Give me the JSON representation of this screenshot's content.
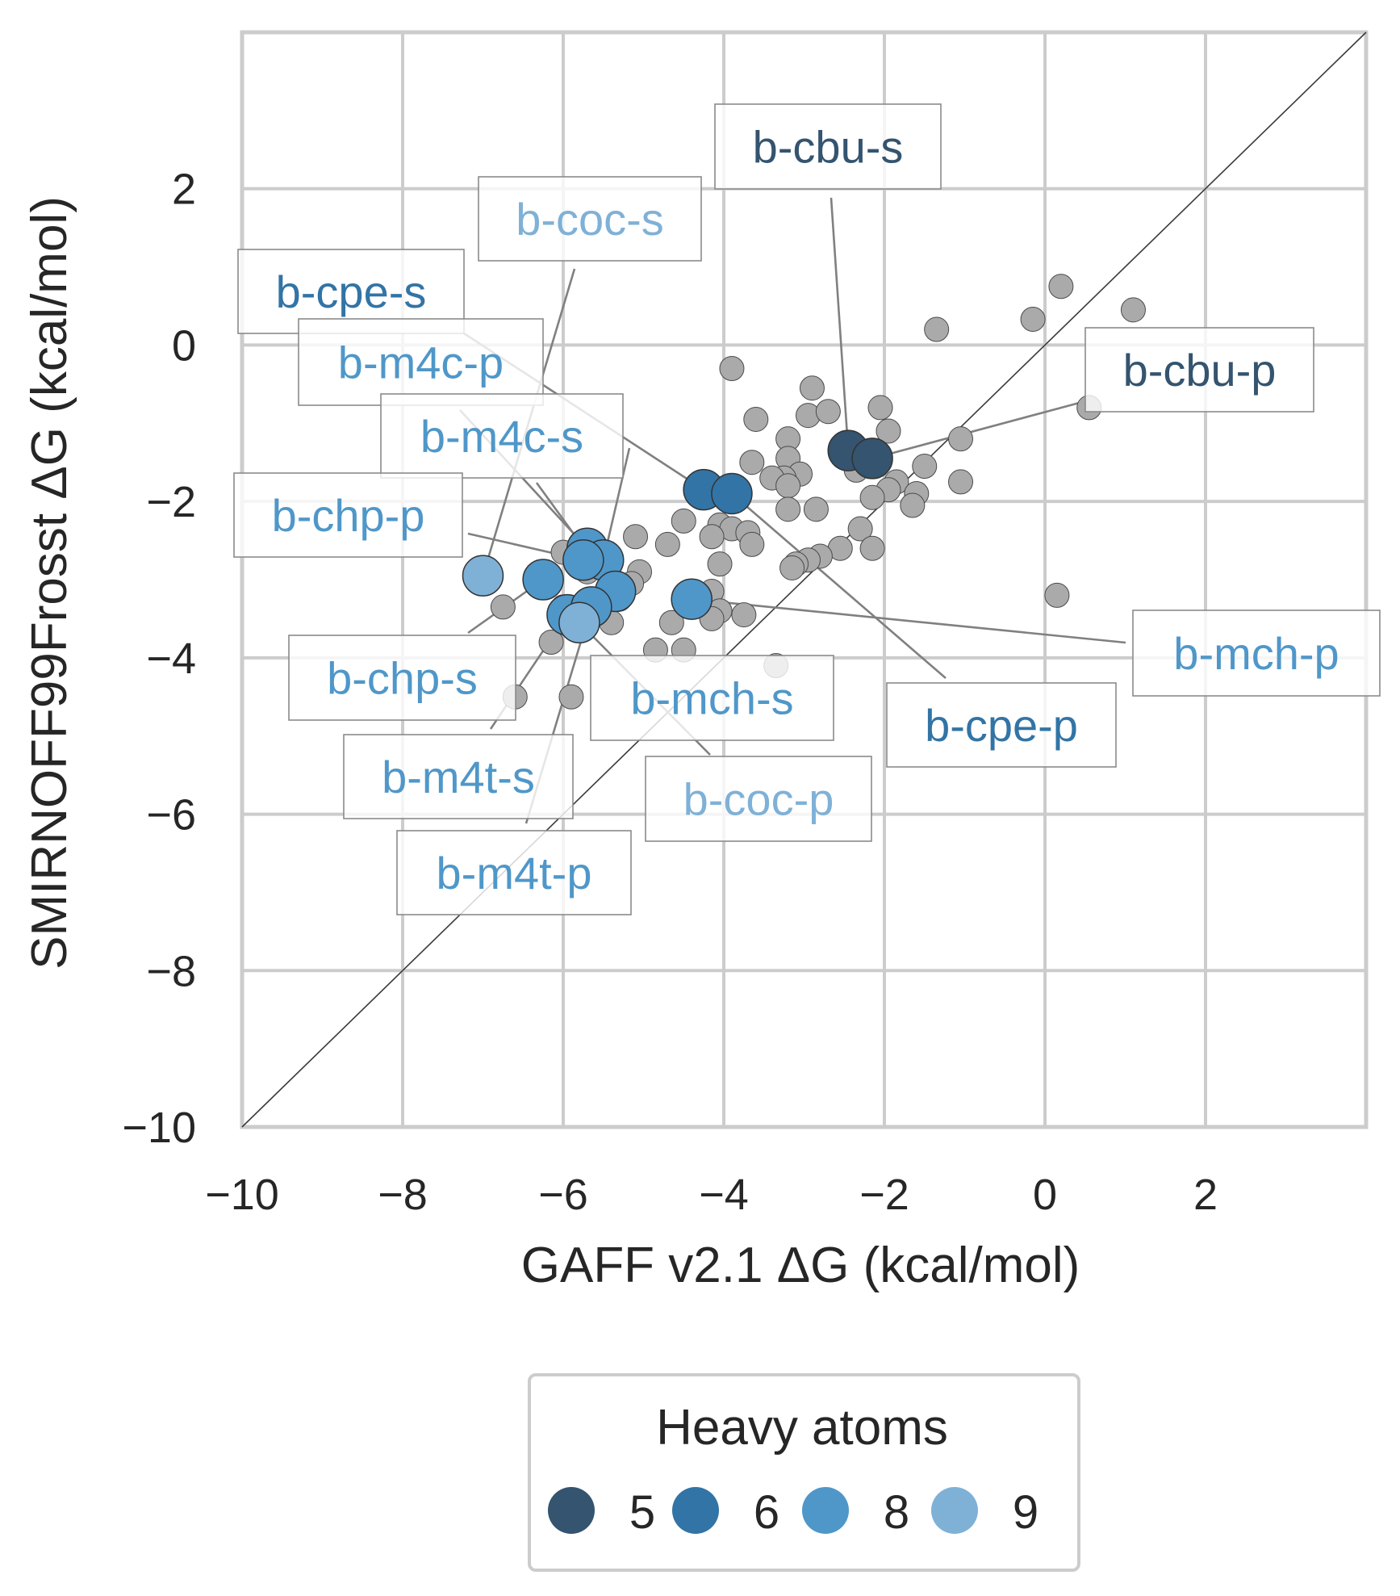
{
  "chart_data": {
    "type": "scatter",
    "xlabel": "GAFF v2.1 ΔG (kcal/mol)",
    "ylabel": "SMIRNOFF99Frosst ΔG (kcal/mol)",
    "xlim": [
      -10,
      4
    ],
    "ylim": [
      -10,
      4
    ],
    "xticks": [
      -10,
      -8,
      -6,
      -4,
      -2,
      0,
      2
    ],
    "yticks": [
      -10,
      -8,
      -6,
      -4,
      -2,
      0,
      2
    ],
    "xtick_labels": [
      "−10",
      "−8",
      "−6",
      "−4",
      "−2",
      "0",
      "2"
    ],
    "ytick_labels": [
      "−10",
      "−8",
      "−6",
      "−4",
      "−2",
      "0",
      "2"
    ],
    "grid": true,
    "identity_line": true,
    "background_points": [
      [
        0.2,
        0.75
      ],
      [
        1.1,
        0.45
      ],
      [
        -0.15,
        0.33
      ],
      [
        -1.35,
        0.2
      ],
      [
        -3.9,
        -0.3
      ],
      [
        -2.9,
        -0.55
      ],
      [
        -2.95,
        -0.9
      ],
      [
        -2.7,
        -0.85
      ],
      [
        -2.05,
        -0.8
      ],
      [
        -3.6,
        -0.95
      ],
      [
        -1.95,
        -1.1
      ],
      [
        -3.2,
        -1.2
      ],
      [
        -1.05,
        -1.2
      ],
      [
        -2.25,
        -1.45
      ],
      [
        -3.2,
        -1.45
      ],
      [
        -1.5,
        -1.55
      ],
      [
        -3.65,
        -1.5
      ],
      [
        -2.35,
        -1.6
      ],
      [
        -3.05,
        -1.65
      ],
      [
        -3.25,
        -1.7
      ],
      [
        -3.4,
        -1.7
      ],
      [
        -1.85,
        -1.75
      ],
      [
        -1.05,
        -1.75
      ],
      [
        -3.2,
        -1.8
      ],
      [
        -1.95,
        -1.85
      ],
      [
        -1.6,
        -1.9
      ],
      [
        -2.15,
        -1.95
      ],
      [
        -3.2,
        -2.1
      ],
      [
        -2.85,
        -2.1
      ],
      [
        -1.65,
        -2.05
      ],
      [
        -4.5,
        -2.25
      ],
      [
        -4.05,
        -2.3
      ],
      [
        -3.9,
        -2.35
      ],
      [
        -4.15,
        -2.45
      ],
      [
        -3.7,
        -2.4
      ],
      [
        -2.3,
        -2.35
      ],
      [
        -4.7,
        -2.55
      ],
      [
        -3.65,
        -2.55
      ],
      [
        -2.15,
        -2.6
      ],
      [
        -2.55,
        -2.6
      ],
      [
        -2.8,
        -2.7
      ],
      [
        -2.95,
        -2.75
      ],
      [
        -3.1,
        -2.8
      ],
      [
        -3.15,
        -2.85
      ],
      [
        -4.05,
        -2.8
      ],
      [
        -5.1,
        -2.45
      ],
      [
        -5.05,
        -2.9
      ],
      [
        -5.15,
        -3.05
      ],
      [
        -4.15,
        -3.15
      ],
      [
        -5.3,
        -3.25
      ],
      [
        -6.75,
        -3.35
      ],
      [
        -6.0,
        -3.35
      ],
      [
        -5.4,
        -3.55
      ],
      [
        -4.05,
        -3.4
      ],
      [
        -3.75,
        -3.45
      ],
      [
        -4.65,
        -3.55
      ],
      [
        -4.15,
        -3.5
      ],
      [
        -6.15,
        -3.8
      ],
      [
        -4.85,
        -3.9
      ],
      [
        -4.5,
        -3.9
      ],
      [
        -5.9,
        -3.6
      ],
      [
        -3.35,
        -4.1
      ],
      [
        -6.6,
        -4.5
      ],
      [
        -5.9,
        -4.5
      ],
      [
        0.15,
        -3.2
      ],
      [
        0.55,
        -0.8
      ],
      [
        -6.0,
        -2.65
      ],
      [
        -5.7,
        -2.9
      ],
      [
        -5.4,
        -3.0
      ],
      [
        -5.6,
        -3.3
      ]
    ],
    "labeled_points": [
      {
        "label": "b-cbu-s",
        "x": -2.45,
        "y": -1.35,
        "heavy_atoms": 5
      },
      {
        "label": "b-cbu-p",
        "x": -2.15,
        "y": -1.45,
        "heavy_atoms": 5
      },
      {
        "label": "b-cpe-s",
        "x": -4.25,
        "y": -1.85,
        "heavy_atoms": 6
      },
      {
        "label": "b-cpe-p",
        "x": -3.9,
        "y": -1.9,
        "heavy_atoms": 6
      },
      {
        "label": "b-m4c-p",
        "x": -5.7,
        "y": -2.6,
        "heavy_atoms": 8
      },
      {
        "label": "b-m4c-s",
        "x": -5.5,
        "y": -2.75,
        "heavy_atoms": 8
      },
      {
        "label": "b-chp-p",
        "x": -5.75,
        "y": -2.75,
        "heavy_atoms": 8
      },
      {
        "label": "b-chp-s",
        "x": -6.25,
        "y": -3.0,
        "heavy_atoms": 8
      },
      {
        "label": "b-mch-s",
        "x": -5.35,
        "y": -3.15,
        "heavy_atoms": 8
      },
      {
        "label": "b-mch-p",
        "x": -4.4,
        "y": -3.25,
        "heavy_atoms": 8
      },
      {
        "label": "b-m4t-s",
        "x": -5.95,
        "y": -3.45,
        "heavy_atoms": 8
      },
      {
        "label": "b-m4t-p",
        "x": -5.65,
        "y": -3.35,
        "heavy_atoms": 8
      },
      {
        "label": "b-coc-s",
        "x": -7.0,
        "y": -2.95,
        "heavy_atoms": 9
      },
      {
        "label": "b-coc-p",
        "x": -5.8,
        "y": -3.55,
        "heavy_atoms": 9
      }
    ],
    "legend": {
      "title": "Heavy atoms",
      "position": "bottom-center",
      "entries": [
        {
          "label": "5",
          "color": "#34546F"
        },
        {
          "label": "6",
          "color": "#3274A5"
        },
        {
          "label": "8",
          "color": "#4F97C9"
        },
        {
          "label": "9",
          "color": "#7FB1D7"
        }
      ]
    },
    "colors": {
      "background_point": "#AAAAAA",
      "grid": "#CCCCCC",
      "connector": "#808080",
      "identity_line": "#3A3A3A"
    }
  }
}
